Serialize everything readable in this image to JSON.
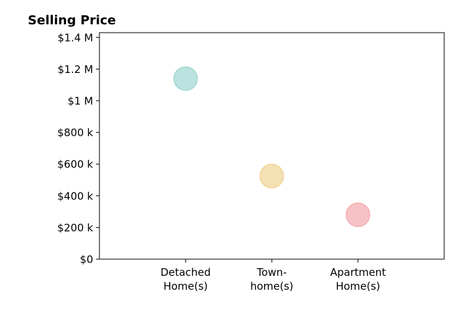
{
  "chart_data": {
    "type": "scatter",
    "title": "Selling Price",
    "xlabel": "",
    "ylabel": "",
    "categories": [
      [
        "Detached",
        "Home(s)"
      ],
      [
        "Town-",
        "home(s)"
      ],
      [
        "Apartment",
        "Home(s)"
      ]
    ],
    "values": [
      1140000,
      525000,
      280000
    ],
    "colors": [
      "#8ecfc8",
      "#eecc7f",
      "#f29aa0"
    ],
    "ylim": [
      0,
      1430000
    ],
    "yticks": [
      0,
      200000,
      400000,
      600000,
      800000,
      1000000,
      1200000,
      1400000
    ],
    "ytick_labels": [
      "$0",
      "$200 k",
      "$400 k",
      "$600 k",
      "$800 k",
      "$1 M",
      "$1.2 M",
      "$1.4 M"
    ],
    "xlim": [
      -1,
      3
    ],
    "grid": false,
    "legend": "none"
  }
}
